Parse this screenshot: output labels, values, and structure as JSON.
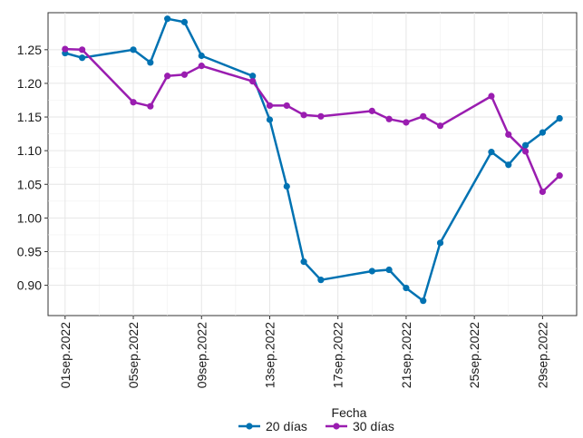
{
  "chart_data": {
    "type": "line",
    "xlabel": "",
    "ylabel": "",
    "legend_title": "Fecha",
    "legend_position": "bottom",
    "grid": true,
    "ylim": [
      0.855,
      1.305
    ],
    "xlim": [
      "2022-08-31",
      "2022-10-01"
    ],
    "y_ticks": [
      "0.90",
      "0.95",
      "1.00",
      "1.05",
      "1.10",
      "1.15",
      "1.20",
      "1.25"
    ],
    "y_tick_values": [
      0.9,
      0.95,
      1.0,
      1.05,
      1.1,
      1.15,
      1.2,
      1.25
    ],
    "x_ticks": [
      "01sep.2022",
      "05sep.2022",
      "09sep.2022",
      "13sep.2022",
      "17sep.2022",
      "21sep.2022",
      "25sep.2022",
      "29sep.2022"
    ],
    "x_tick_dates": [
      "2022-09-01",
      "2022-09-05",
      "2022-09-09",
      "2022-09-13",
      "2022-09-17",
      "2022-09-21",
      "2022-09-25",
      "2022-09-29"
    ],
    "x": [
      "2022-09-01",
      "2022-09-02",
      "2022-09-05",
      "2022-09-06",
      "2022-09-07",
      "2022-09-08",
      "2022-09-09",
      "2022-09-12",
      "2022-09-13",
      "2022-09-14",
      "2022-09-15",
      "2022-09-16",
      "2022-09-19",
      "2022-09-20",
      "2022-09-21",
      "2022-09-22",
      "2022-09-23",
      "2022-09-26",
      "2022-09-27",
      "2022-09-28",
      "2022-09-29",
      "2022-09-30"
    ],
    "series": [
      {
        "name": "20 días",
        "color": "#0072B2",
        "values": [
          1.245,
          1.238,
          1.25,
          1.231,
          1.296,
          1.291,
          1.241,
          1.211,
          1.146,
          1.047,
          0.935,
          0.908,
          0.921,
          0.923,
          0.896,
          0.877,
          0.963,
          1.098,
          1.079,
          1.108,
          1.127,
          1.148
        ]
      },
      {
        "name": "30 días",
        "color": "#9A1DB0",
        "values": [
          1.251,
          1.25,
          1.172,
          1.166,
          1.211,
          1.213,
          1.226,
          1.203,
          1.167,
          1.167,
          1.153,
          1.151,
          1.159,
          1.147,
          1.142,
          1.151,
          1.137,
          1.181,
          1.124,
          1.099,
          1.039,
          1.063
        ]
      }
    ]
  }
}
